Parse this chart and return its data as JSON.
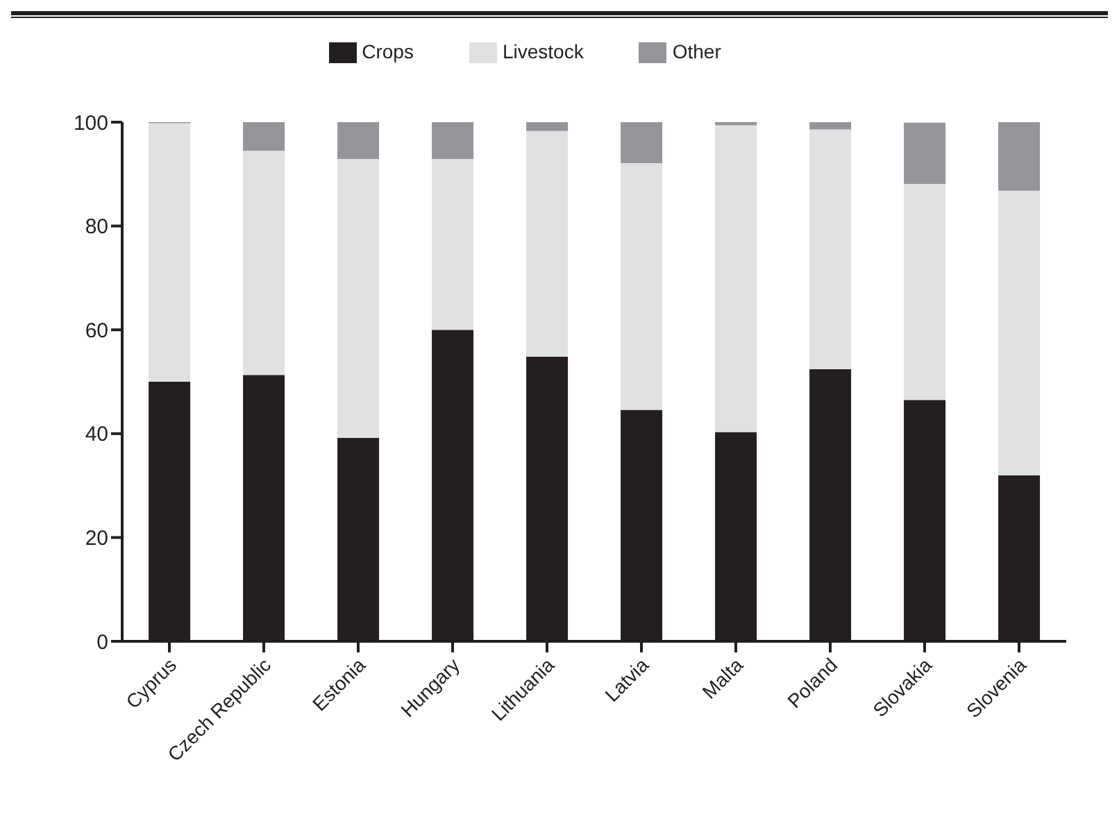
{
  "chart_data": {
    "type": "bar",
    "stacked": true,
    "categories": [
      "Cyprus",
      "Czech Republic",
      "Estonia",
      "Hungary",
      "Lithuania",
      "Latvia",
      "Malta",
      "Poland",
      "Slovakia",
      "Slovenia"
    ],
    "series": [
      {
        "name": "Crops",
        "color": "#231f20",
        "values": [
          50,
          51.3,
          39.2,
          60,
          54.8,
          44.6,
          40.3,
          52.4,
          46.5,
          32
        ]
      },
      {
        "name": "Livestock",
        "color": "#e0e1e3",
        "values": [
          49.8,
          43.2,
          53.7,
          32.9,
          43.5,
          47.5,
          59.1,
          46.2,
          41.6,
          54.8
        ]
      },
      {
        "name": "Other",
        "color": "#939598",
        "values": [
          0.2,
          5.5,
          7.1,
          7.1,
          1.7,
          7.9,
          0.6,
          1.4,
          11.8,
          13.2
        ]
      }
    ],
    "ylim": [
      0,
      100
    ],
    "yticks": [
      0,
      20,
      40,
      60,
      80,
      100
    ],
    "grid": false,
    "legend": "top"
  }
}
